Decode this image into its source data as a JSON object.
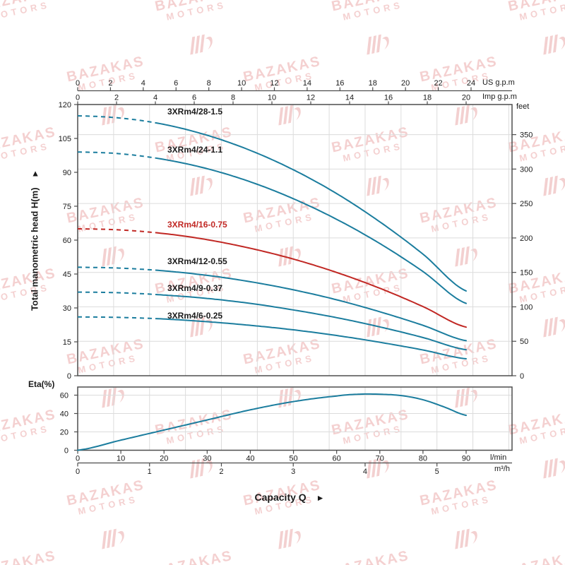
{
  "watermark": {
    "line1": "BAZAKAS",
    "line2": "MOTORS",
    "logo_icon": "striped-wing-logo",
    "color": "#dd7070"
  },
  "labels": {
    "capacity": "Capacity Q",
    "capacity_arrow": "►",
    "head_title": "Total manometric head H(m)",
    "head_arrow": "►",
    "eta_title": "Eta(%)"
  },
  "colors": {
    "curve_teal": "#1b7d9e",
    "curve_red": "#c12824",
    "grid": "#dcdcdc",
    "axis": "#4d4d4d",
    "text": "#1a1a1a"
  },
  "chart_data": {
    "type": "line",
    "title": "",
    "description": "Pump performance curves: total manometric head and efficiency versus capacity",
    "x_axes": {
      "us_gpm": {
        "label": "US g.p.m",
        "ticks": [
          0,
          2,
          4,
          6,
          8,
          10,
          12,
          14,
          16,
          18,
          20,
          22,
          24
        ]
      },
      "imp_gpm": {
        "label": "Imp g.p.m",
        "ticks": [
          0,
          2,
          4,
          6,
          8,
          10,
          12,
          14,
          16,
          18,
          20
        ]
      },
      "lmin": {
        "label": "l/min",
        "ticks": [
          0,
          10,
          20,
          30,
          40,
          50,
          60,
          70,
          80,
          90
        ]
      },
      "m3h": {
        "label": "m³/h",
        "ticks": [
          0,
          1,
          2,
          3,
          4,
          5
        ]
      }
    },
    "head_plot": {
      "ylabel": "Total manometric head H(m)",
      "ylim_m": [
        0,
        120
      ],
      "yticks_m": [
        0,
        15,
        30,
        45,
        60,
        75,
        90,
        105,
        120
      ],
      "right_axis": {
        "label": "feet",
        "ticks": [
          0,
          50,
          100,
          150,
          200,
          250,
          300,
          350
        ]
      },
      "grid": "vertical every 0.5 m³/h, horizontal every 50 feet",
      "dashed_low_flow_until_lmin": 19,
      "q_lmin": [
        0,
        10,
        20,
        30,
        40,
        50,
        60,
        70,
        80,
        90
      ],
      "series": [
        {
          "label": "3XRm4/28-1.5",
          "color": "#1b7d9e",
          "head_m": [
            115.0,
            114.0,
            111.2,
            106.4,
            99.7,
            91.1,
            80.6,
            68.1,
            53.8,
            37.5
          ]
        },
        {
          "label": "3XRm4/24-1.1",
          "color": "#1b7d9e",
          "head_m": [
            99.0,
            98.2,
            95.7,
            91.6,
            85.8,
            78.3,
            69.2,
            58.5,
            46.1,
            32.0
          ]
        },
        {
          "label": "3XRm4/16-0.75",
          "color": "#c12824",
          "head_m": [
            65.0,
            64.5,
            62.9,
            60.2,
            56.4,
            51.6,
            45.7,
            38.7,
            30.6,
            21.5
          ]
        },
        {
          "label": "3XRm4/12-0.55",
          "color": "#1b7d9e",
          "head_m": [
            48.0,
            47.6,
            46.4,
            44.4,
            41.6,
            38.0,
            33.6,
            28.3,
            22.3,
            15.5
          ]
        },
        {
          "label": "3XRm4/9-0.37",
          "color": "#1b7d9e",
          "head_m": [
            37.0,
            36.7,
            35.7,
            34.2,
            32.0,
            29.1,
            25.7,
            21.6,
            16.9,
            11.5
          ]
        },
        {
          "label": "3XRm4/6-0.25",
          "color": "#1b7d9e",
          "head_m": [
            26.0,
            25.8,
            25.1,
            23.9,
            22.3,
            20.3,
            17.8,
            14.8,
            11.4,
            7.5
          ]
        }
      ]
    },
    "eta_plot": {
      "ylabel": "Eta(%)",
      "ylim": [
        0,
        69
      ],
      "yticks": [
        0,
        20,
        40,
        60
      ],
      "color": "#1b7d9e",
      "q_lmin": [
        0,
        10,
        20,
        30,
        40,
        50,
        60,
        65,
        70,
        75,
        80,
        85,
        90
      ],
      "eta_pct": [
        0,
        11,
        22,
        33,
        44,
        53,
        59,
        61,
        61,
        59.5,
        55,
        47,
        38
      ]
    }
  }
}
